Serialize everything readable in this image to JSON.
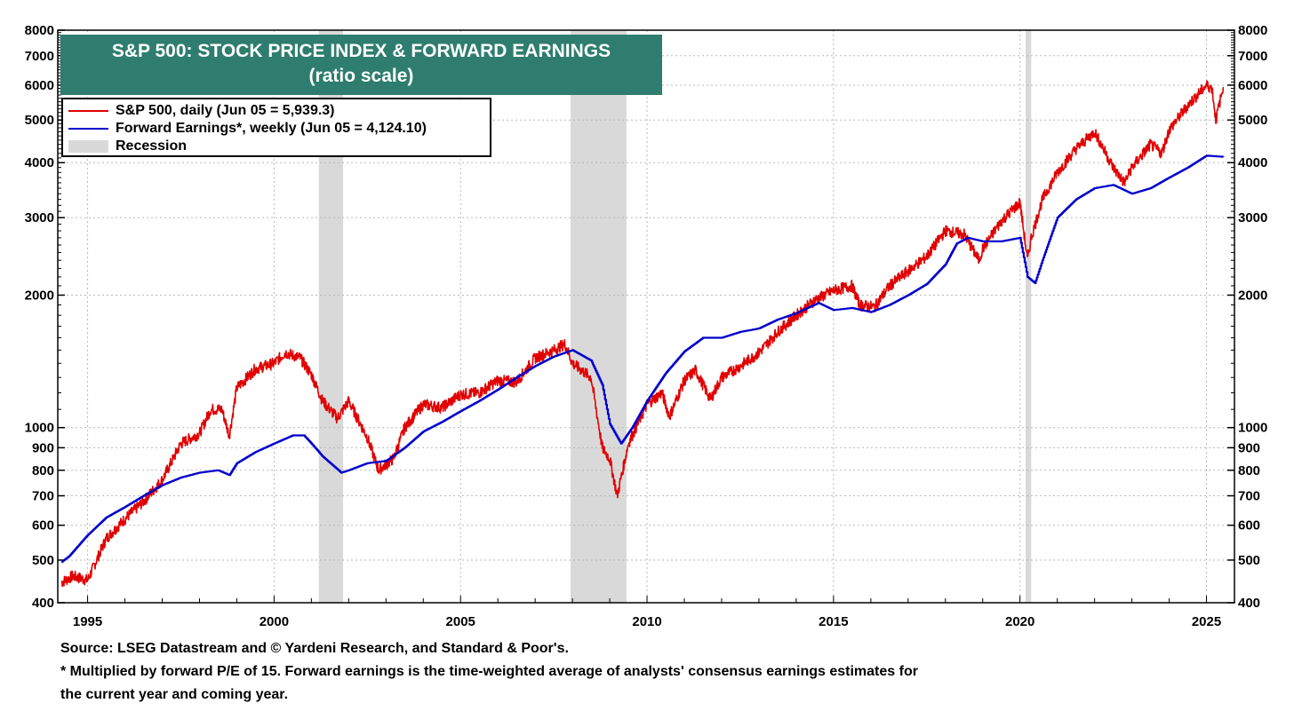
{
  "title": {
    "line1": "S&P 500: STOCK PRICE INDEX & FORWARD EARNINGS",
    "line2": "(ratio scale)"
  },
  "legend": {
    "sp500": "S&P 500, daily (Jun 05 = 5,939.3)",
    "earnings": "Forward Earnings*, weekly (Jun 05 = 4,124.10)",
    "recession": "Recession"
  },
  "footer": {
    "source": "Source: LSEG Datastream and © Yardeni Research, and Standard & Poor's.",
    "note_line1": "* Multiplied by forward P/E of 15. Forward earnings is the time-weighted average of analysts' consensus earnings estimates for",
    "note_line2": "the current year and coming year."
  },
  "colors": {
    "sp500": "#e00000",
    "earnings": "#0000cc",
    "recession": "#d9d9d9",
    "title_bg": "#2e7d6e"
  },
  "chart_data": {
    "type": "line",
    "y_scale": "log",
    "ylim": [
      400,
      8000
    ],
    "xlim": [
      1994.2,
      2025.75
    ],
    "y_ticks": [
      400,
      500,
      600,
      700,
      800,
      900,
      1000,
      2000,
      3000,
      4000,
      5000,
      6000,
      7000,
      8000
    ],
    "x_ticks": [
      1995,
      2000,
      2005,
      2010,
      2015,
      2020,
      2025
    ],
    "grid": true,
    "recessions": [
      [
        2001.2,
        2001.85
      ],
      [
        2007.95,
        2009.45
      ],
      [
        2020.15,
        2020.3
      ]
    ],
    "series": [
      {
        "name": "S&P 500, daily (Jun 05 = 5,939.3)",
        "x": [
          1994.3,
          1994.6,
          1995.0,
          1995.5,
          1996.0,
          1996.5,
          1997.0,
          1997.5,
          1998.0,
          1998.3,
          1998.6,
          1998.8,
          1999.0,
          1999.5,
          2000.0,
          2000.3,
          2000.7,
          2001.0,
          2001.3,
          2001.7,
          2002.0,
          2002.5,
          2002.8,
          2003.2,
          2003.5,
          2004.0,
          2004.5,
          2005.0,
          2005.5,
          2006.0,
          2006.5,
          2007.0,
          2007.5,
          2007.8,
          2008.0,
          2008.5,
          2008.8,
          2009.0,
          2009.2,
          2009.5,
          2010.0,
          2010.4,
          2010.6,
          2011.0,
          2011.3,
          2011.7,
          2012.0,
          2012.5,
          2013.0,
          2013.5,
          2014.0,
          2014.5,
          2015.0,
          2015.5,
          2015.7,
          2016.1,
          2016.5,
          2017.0,
          2017.5,
          2018.0,
          2018.5,
          2018.9,
          2019.0,
          2019.5,
          2020.0,
          2020.2,
          2020.3,
          2020.6,
          2021.0,
          2021.5,
          2022.0,
          2022.5,
          2022.8,
          2023.0,
          2023.5,
          2023.8,
          2024.0,
          2024.5,
          2025.0,
          2025.15,
          2025.25,
          2025.45
        ],
        "y": [
          445,
          460,
          450,
          560,
          620,
          680,
          760,
          920,
          970,
          1100,
          1100,
          960,
          1230,
          1360,
          1400,
          1480,
          1440,
          1320,
          1150,
          1050,
          1150,
          950,
          800,
          850,
          1000,
          1130,
          1110,
          1190,
          1200,
          1280,
          1270,
          1440,
          1500,
          1550,
          1400,
          1300,
          900,
          850,
          700,
          920,
          1130,
          1200,
          1060,
          1280,
          1350,
          1160,
          1300,
          1380,
          1480,
          1650,
          1800,
          1950,
          2050,
          2100,
          1900,
          1880,
          2100,
          2270,
          2450,
          2800,
          2750,
          2400,
          2550,
          2950,
          3250,
          2400,
          2700,
          3300,
          3800,
          4300,
          4700,
          3900,
          3600,
          3900,
          4400,
          4200,
          4750,
          5400,
          6000,
          5900,
          5000,
          5939
        ]
      },
      {
        "name": "Forward Earnings*, weekly (Jun 05 = 4,124.10)",
        "x": [
          1994.3,
          1994.5,
          1995.0,
          1995.5,
          1996.0,
          1996.5,
          1997.0,
          1997.5,
          1998.0,
          1998.5,
          1998.8,
          1999.0,
          1999.5,
          2000.0,
          2000.5,
          2000.8,
          2001.0,
          2001.3,
          2001.8,
          2002.0,
          2002.5,
          2003.0,
          2003.5,
          2004.0,
          2004.5,
          2005.0,
          2005.5,
          2006.0,
          2006.5,
          2007.0,
          2007.5,
          2008.0,
          2008.5,
          2008.8,
          2009.0,
          2009.3,
          2009.6,
          2010.0,
          2010.5,
          2011.0,
          2011.5,
          2012.0,
          2012.5,
          2013.0,
          2013.5,
          2014.0,
          2014.6,
          2015.0,
          2015.5,
          2016.0,
          2016.5,
          2017.0,
          2017.5,
          2018.0,
          2018.3,
          2018.6,
          2019.0,
          2019.5,
          2020.0,
          2020.2,
          2020.4,
          2020.6,
          2021.0,
          2021.5,
          2022.0,
          2022.5,
          2023.0,
          2023.5,
          2024.0,
          2024.5,
          2025.0,
          2025.45
        ],
        "y": [
          495,
          510,
          570,
          625,
          660,
          700,
          740,
          770,
          790,
          800,
          780,
          830,
          880,
          920,
          960,
          960,
          920,
          860,
          790,
          800,
          830,
          840,
          900,
          980,
          1030,
          1090,
          1150,
          1220,
          1300,
          1380,
          1450,
          1500,
          1420,
          1250,
          1020,
          920,
          1000,
          1150,
          1330,
          1490,
          1600,
          1600,
          1650,
          1680,
          1760,
          1820,
          1920,
          1850,
          1870,
          1830,
          1900,
          2000,
          2120,
          2350,
          2620,
          2700,
          2650,
          2650,
          2700,
          2200,
          2130,
          2400,
          3000,
          3300,
          3500,
          3560,
          3400,
          3500,
          3700,
          3900,
          4150,
          4124
        ]
      }
    ]
  }
}
